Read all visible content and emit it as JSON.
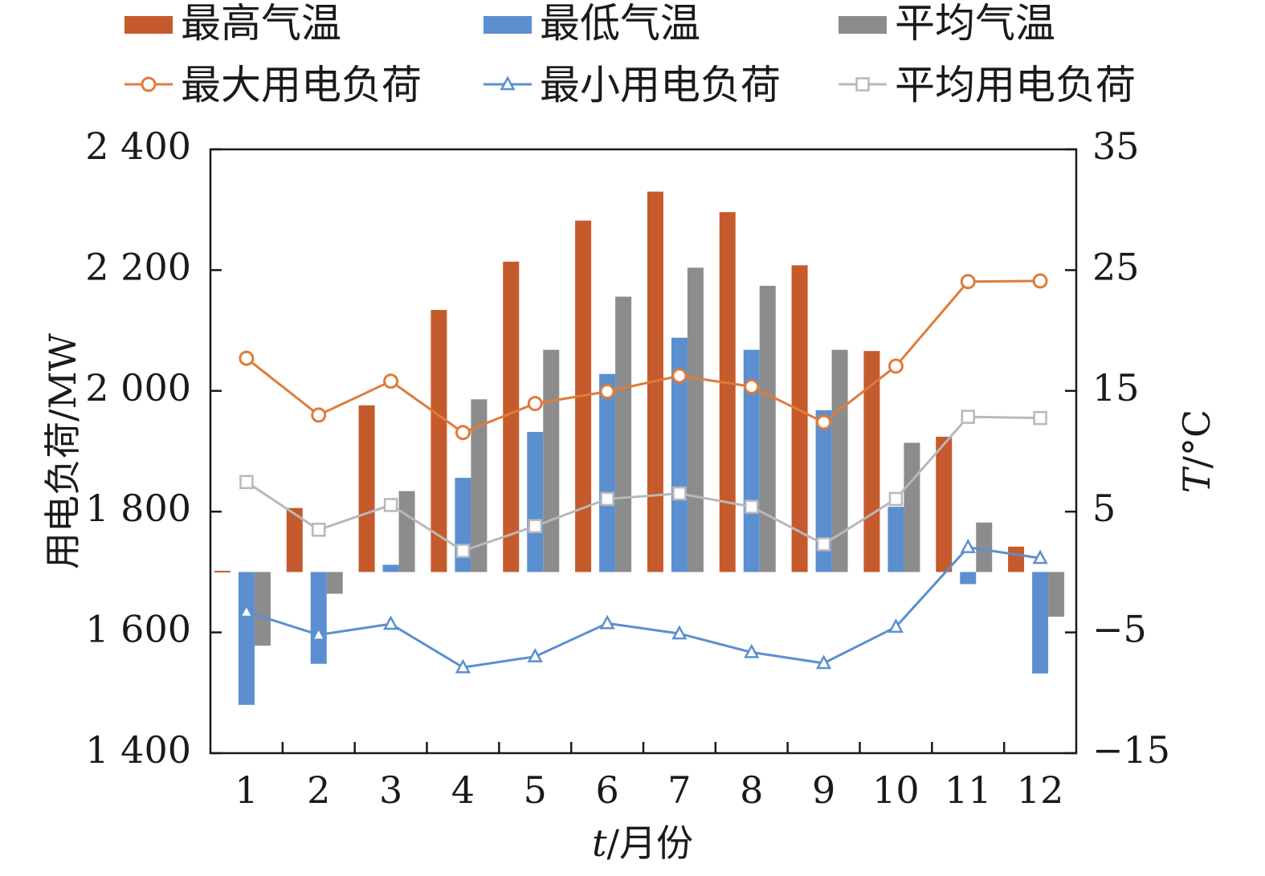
{
  "colors": {
    "max_temp": "#C55A2C",
    "min_temp": "#5B8FD0",
    "avg_temp": "#8C8C8C",
    "max_load": "#E07B39",
    "min_load": "#5B8FD0",
    "avg_load": "#B8B8B8",
    "axis": "#1a1a1a"
  },
  "chart_data": {
    "type": "bar",
    "categories": [
      "1",
      "2",
      "3",
      "4",
      "5",
      "6",
      "7",
      "8",
      "9",
      "10",
      "11",
      "12"
    ],
    "xlabel_italic": "t",
    "xlabel_rest": "/月份",
    "ylabel": "用电负荷/MW",
    "y2label_italic": "T",
    "y2label_rest": "/°C",
    "ylim": [
      1400,
      2400
    ],
    "y2lim": [
      -15,
      35
    ],
    "yticks": [
      1400,
      1600,
      1800,
      2000,
      2200,
      2400
    ],
    "yticks_labels": [
      "1 400",
      "1 600",
      "1 800",
      "2 000",
      "2 200",
      "2 400"
    ],
    "y2ticks": [
      -15,
      -5,
      5,
      15,
      25,
      35
    ],
    "y2ticks_labels": [
      "−15",
      "−5",
      "5",
      "15",
      "25",
      "35"
    ],
    "grid": false,
    "legend_position": "top",
    "bar_series": [
      {
        "name": "最高气温",
        "axis": "right",
        "color_key": "max_temp",
        "values": [
          0.1,
          5.3,
          13.8,
          21.7,
          25.7,
          29.1,
          31.5,
          29.8,
          25.4,
          18.3,
          11.2,
          2.1
        ]
      },
      {
        "name": "最低气温",
        "axis": "right",
        "color_key": "min_temp",
        "values": [
          -11.0,
          -7.6,
          0.6,
          7.8,
          11.6,
          16.4,
          19.4,
          18.4,
          13.4,
          5.4,
          -1.0,
          -8.4
        ]
      },
      {
        "name": "平均气温",
        "axis": "right",
        "color_key": "avg_temp",
        "values": [
          -6.1,
          -1.8,
          6.7,
          14.3,
          18.4,
          22.8,
          25.2,
          23.7,
          18.4,
          10.7,
          4.1,
          -3.7
        ]
      }
    ],
    "line_series": [
      {
        "name": "最大用电负荷",
        "axis": "left",
        "color_key": "max_load",
        "marker": "circle",
        "values": [
          2054,
          1960,
          2016,
          1931,
          1979,
          1999,
          2025,
          2007,
          1948,
          2041,
          2181,
          2182
        ]
      },
      {
        "name": "最小用电负荷",
        "axis": "left",
        "color_key": "min_load",
        "marker": "triangle",
        "values": [
          1634,
          1596,
          1614,
          1542,
          1560,
          1615,
          1598,
          1567,
          1549,
          1609,
          1741,
          1723
        ]
      },
      {
        "name": "平均用电负荷",
        "axis": "left",
        "color_key": "avg_load",
        "marker": "square",
        "values": [
          1849,
          1770,
          1811,
          1735,
          1776,
          1821,
          1830,
          1808,
          1746,
          1821,
          1957,
          1955
        ]
      }
    ]
  }
}
